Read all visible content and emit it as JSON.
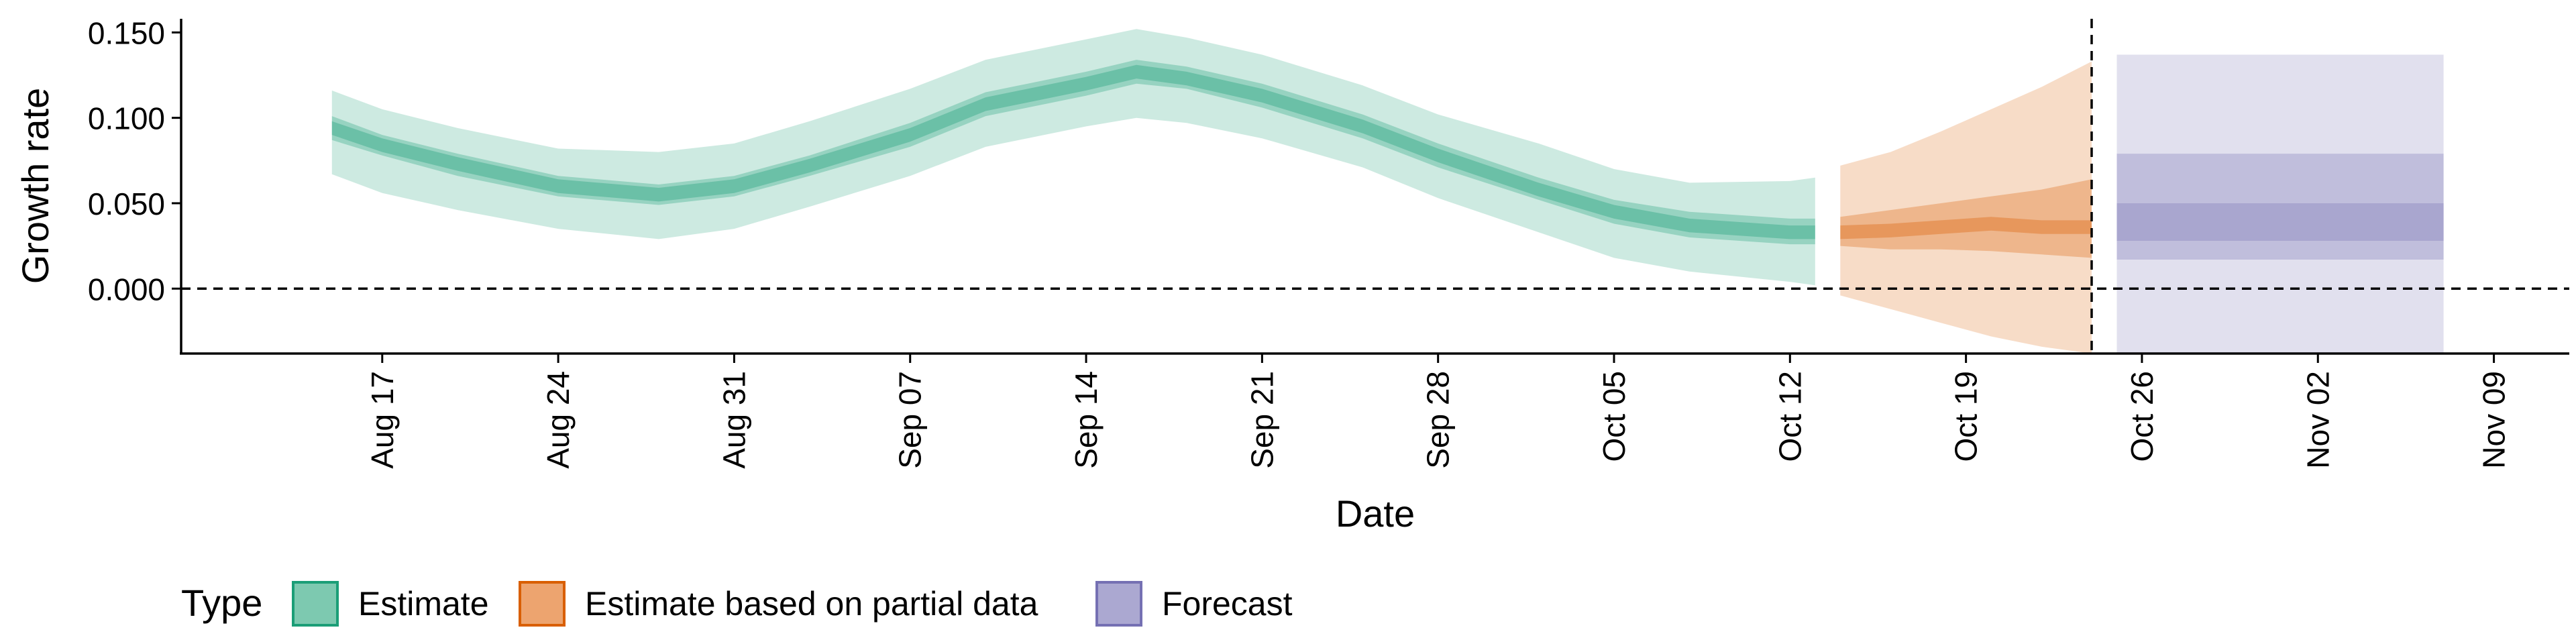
{
  "chart_data": {
    "type": "area",
    "title": "",
    "xlabel": "Date",
    "ylabel": "Growth rate",
    "ylim": [
      -0.038,
      0.158
    ],
    "xlim": [
      "2020-08-09",
      "2020-11-12"
    ],
    "y_ticks": [
      0.0,
      0.05,
      0.1,
      0.15
    ],
    "y_tick_labels": [
      "0.000",
      "0.050",
      "0.100",
      "0.150"
    ],
    "x_ticks": [
      "2020-08-17",
      "2020-08-24",
      "2020-08-31",
      "2020-09-07",
      "2020-09-14",
      "2020-09-21",
      "2020-09-28",
      "2020-10-05",
      "2020-10-12",
      "2020-10-19",
      "2020-10-26",
      "2020-11-02",
      "2020-11-09"
    ],
    "x_tick_labels": [
      "Aug 17",
      "Aug 24",
      "Aug 31",
      "Sep 07",
      "Sep 14",
      "Sep 21",
      "Sep 28",
      "Oct 05",
      "Oct 12",
      "Oct 19",
      "Oct 26",
      "Nov 02",
      "Nov 09"
    ],
    "hline": 0,
    "vline": "2020-10-24",
    "grid": false,
    "legend": {
      "title": "Type",
      "placement": "bottom",
      "items": [
        {
          "label": "Estimate",
          "fill": "#7dc9b0",
          "stroke": "#1b9e77"
        },
        {
          "label": "Estimate based on partial data",
          "fill": "#eda46f",
          "stroke": "#d95f02"
        },
        {
          "label": "Forecast",
          "fill": "#aba8d1",
          "stroke": "#7570b3"
        }
      ]
    },
    "series": [
      {
        "name": "Estimate",
        "color": "#1b9e77",
        "x": [
          "2020-08-15",
          "2020-08-17",
          "2020-08-20",
          "2020-08-24",
          "2020-08-28",
          "2020-08-31",
          "2020-09-03",
          "2020-09-07",
          "2020-09-10",
          "2020-09-14",
          "2020-09-16",
          "2020-09-18",
          "2020-09-21",
          "2020-09-25",
          "2020-09-28",
          "2020-10-02",
          "2020-10-05",
          "2020-10-08",
          "2020-10-12",
          "2020-10-13"
        ],
        "median": [
          0.094,
          0.084,
          0.073,
          0.06,
          0.055,
          0.06,
          0.072,
          0.09,
          0.108,
          0.12,
          0.127,
          0.123,
          0.113,
          0.095,
          0.078,
          0.058,
          0.045,
          0.037,
          0.033,
          0.033
        ],
        "lower_50": [
          0.087,
          0.078,
          0.066,
          0.054,
          0.049,
          0.054,
          0.066,
          0.083,
          0.101,
          0.113,
          0.12,
          0.117,
          0.106,
          0.088,
          0.071,
          0.052,
          0.038,
          0.03,
          0.026,
          0.026
        ],
        "upper_50": [
          0.101,
          0.09,
          0.079,
          0.066,
          0.061,
          0.066,
          0.078,
          0.097,
          0.115,
          0.127,
          0.134,
          0.13,
          0.12,
          0.102,
          0.085,
          0.065,
          0.052,
          0.045,
          0.041,
          0.041
        ],
        "lower_90": [
          0.067,
          0.056,
          0.046,
          0.035,
          0.029,
          0.035,
          0.048,
          0.066,
          0.083,
          0.095,
          0.1,
          0.097,
          0.088,
          0.071,
          0.053,
          0.033,
          0.018,
          0.01,
          0.004,
          0.002
        ],
        "upper_90": [
          0.116,
          0.105,
          0.094,
          0.082,
          0.08,
          0.085,
          0.098,
          0.117,
          0.134,
          0.146,
          0.152,
          0.147,
          0.137,
          0.119,
          0.102,
          0.085,
          0.07,
          0.062,
          0.063,
          0.065
        ]
      },
      {
        "name": "Estimate based on partial data",
        "color": "#d95f02",
        "x": [
          "2020-10-14",
          "2020-10-16",
          "2020-10-18",
          "2020-10-20",
          "2020-10-22",
          "2020-10-24"
        ],
        "median": [
          0.033,
          0.034,
          0.036,
          0.038,
          0.036,
          0.036
        ],
        "lower_50": [
          0.025,
          0.023,
          0.023,
          0.022,
          0.02,
          0.018
        ],
        "upper_50": [
          0.042,
          0.046,
          0.05,
          0.054,
          0.058,
          0.064
        ],
        "lower_90": [
          -0.004,
          -0.012,
          -0.02,
          -0.028,
          -0.034,
          -0.038
        ],
        "upper_90": [
          0.072,
          0.08,
          0.092,
          0.105,
          0.118,
          0.133
        ]
      },
      {
        "name": "Forecast",
        "color": "#7570b3",
        "x": [
          "2020-10-25",
          "2020-11-07"
        ],
        "lower_90": [
          -0.038,
          -0.038
        ],
        "upper_90": [
          0.137,
          0.137
        ],
        "lower_50": [
          0.017,
          0.017
        ],
        "upper_50": [
          0.079,
          0.079
        ],
        "lower_20": [
          0.028,
          0.028
        ],
        "upper_20": [
          0.05,
          0.05
        ]
      }
    ]
  }
}
